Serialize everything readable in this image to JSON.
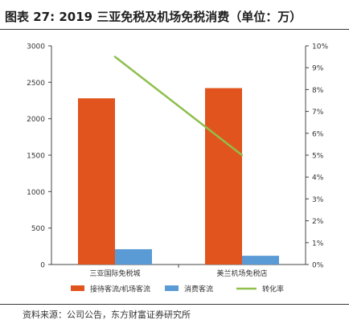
{
  "title": "图表 27: 2019 三亚免税及机场免税消费（单位：万）",
  "source": "资料来源：公司公告，东方财富证券研究所",
  "colors": {
    "bar_primary": "#e2541e",
    "bar_secondary": "#5b9bd5",
    "line": "#8fbf4d",
    "axis": "#444444"
  },
  "chart_data": {
    "type": "bar",
    "categories": [
      "三亚国际免税城",
      "美兰机场免税店"
    ],
    "series": [
      {
        "name": "接待客流/机场客流",
        "type": "bar",
        "axis": "left",
        "values": [
          2280,
          2420
        ]
      },
      {
        "name": "消费客流",
        "type": "bar",
        "axis": "left",
        "values": [
          210,
          120
        ]
      },
      {
        "name": "转化率",
        "type": "line",
        "axis": "right",
        "values": [
          9.5,
          5.0
        ]
      }
    ],
    "ylim": [
      0,
      3000
    ],
    "yticks": [
      "0",
      "500",
      "1000",
      "1500",
      "2000",
      "2500",
      "3000"
    ],
    "y2lim": [
      0,
      10
    ],
    "y2ticks": [
      "0%",
      "1%",
      "2%",
      "3%",
      "4%",
      "5%",
      "6%",
      "7%",
      "8%",
      "9%",
      "10%"
    ],
    "legend_position": "bottom",
    "grid": false
  }
}
